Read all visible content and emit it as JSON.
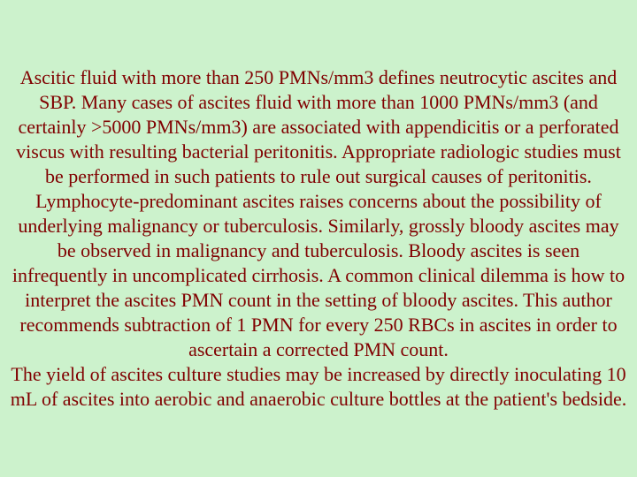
{
  "slide": {
    "background_color": "#ccf2cc",
    "text_color": "#800000",
    "font_family": "Times New Roman",
    "font_size_pt": 17,
    "text_align": "center",
    "paragraph1": "Ascitic fluid with more than 250 PMNs/mm3 defines neutrocytic ascites and SBP. Many cases of ascites fluid with more than 1000 PMNs/mm3 (and certainly >5000 PMNs/mm3) are associated with appendicitis or a perforated viscus with resulting bacterial peritonitis. Appropriate radiologic studies must be performed in such patients to rule out surgical causes of peritonitis. Lymphocyte-predominant ascites raises concerns about the possibility of underlying malignancy or tuberculosis. Similarly, grossly bloody ascites may be observed in malignancy and tuberculosis. Bloody ascites is seen infrequently in uncomplicated cirrhosis. A common clinical dilemma is how to interpret the ascites PMN count in the setting of bloody ascites. This author recommends subtraction of 1 PMN for every 250 RBCs in ascites in order to ascertain a corrected PMN count.",
    "paragraph2": "The yield of ascites culture studies may be increased by directly inoculating 10 mL of ascites into aerobic and anaerobic culture bottles at the patient's bedside."
  }
}
